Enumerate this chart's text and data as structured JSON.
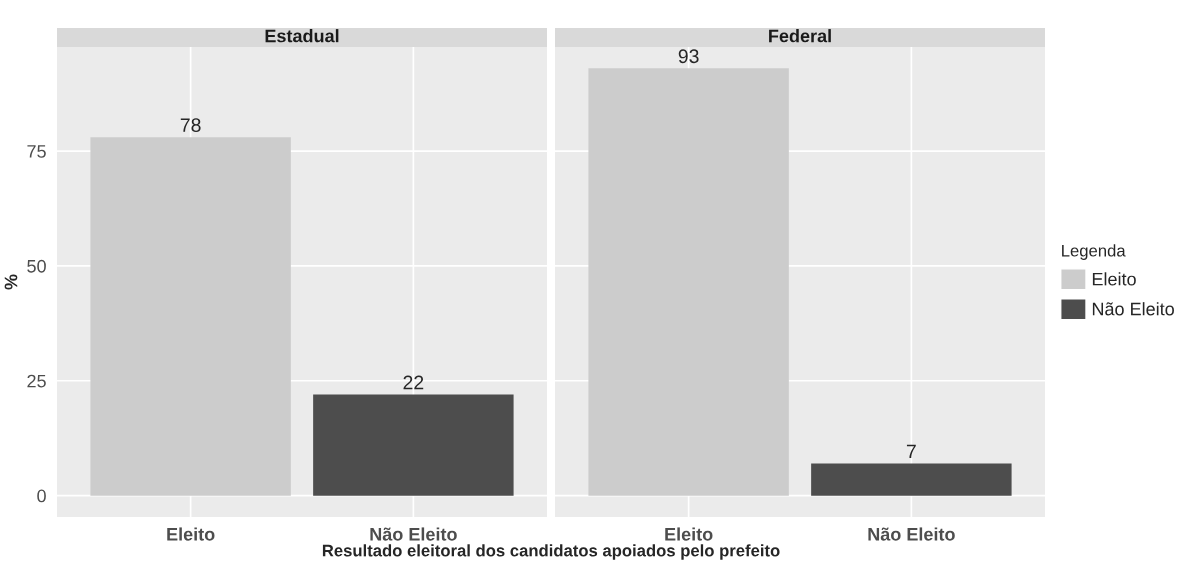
{
  "chart_data": [
    {
      "type": "bar",
      "title": "Estadual",
      "ylabel": "%",
      "xlabel": "Resultado eleitoral dos candidatos apoiados pelo prefeito",
      "categories": [
        "Eleito",
        "Não Eleito"
      ],
      "series": [
        {
          "color": "#cccccc",
          "values": [
            78,
            null
          ]
        },
        {
          "color": "#4d4d4d",
          "values": [
            null,
            22
          ]
        }
      ],
      "ylim": [
        -4.65,
        97.65
      ],
      "yticks": [
        0,
        25,
        50,
        75
      ],
      "grid": true,
      "data_labels": true
    },
    {
      "type": "bar",
      "title": "Federal",
      "categories": [
        "Eleito",
        "Não Eleito"
      ],
      "series": [
        {
          "name": "Eleito",
          "color": "#cccccc",
          "values": [
            93,
            null
          ]
        },
        {
          "name": "Não Eleito",
          "color": "#4d4d4d",
          "values": [
            null,
            7
          ]
        }
      ],
      "ylim": [
        -4.65,
        97.65
      ],
      "yticks": [
        0,
        25,
        50,
        75
      ],
      "tick_labels": "x",
      "grid": true,
      "data_labels": true,
      "legend": "right",
      "legend_title": "Legenda"
    }
  ]
}
